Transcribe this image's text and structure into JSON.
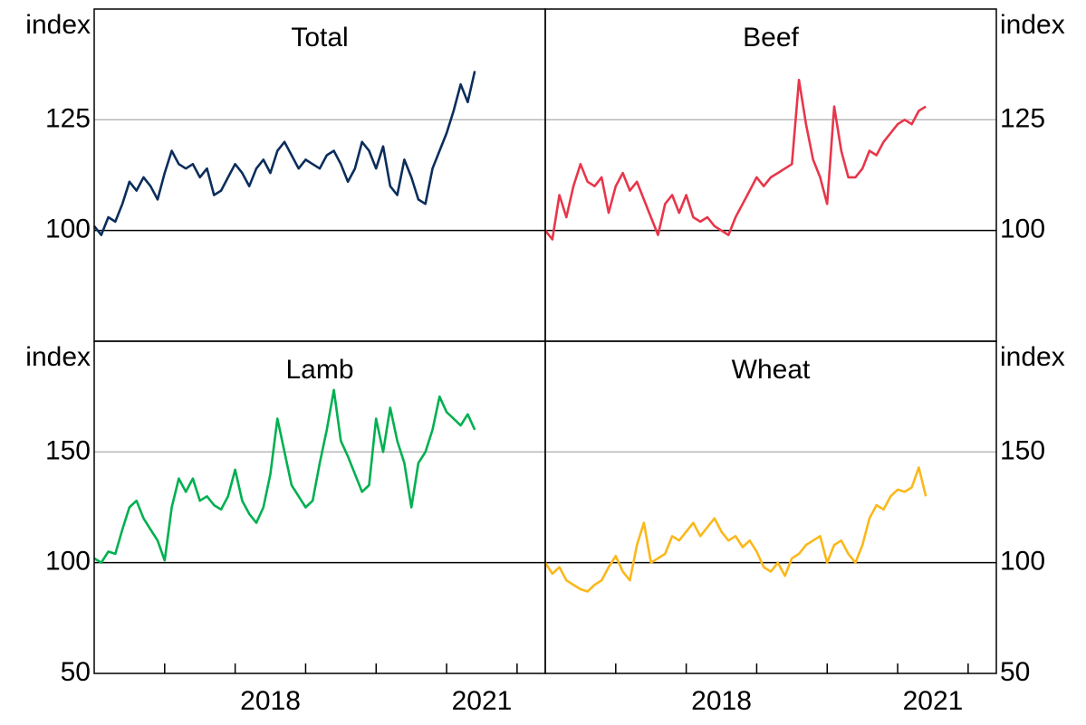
{
  "chart_data": [
    {
      "type": "line",
      "title": "Total",
      "y_label": "index",
      "axis_side": "left",
      "color": "#0b2d5c",
      "xlim": [
        2016,
        2022.4
      ],
      "ylim": [
        75,
        150
      ],
      "yticks": [
        100,
        125
      ],
      "baseline": 100,
      "x": [
        2016.0,
        2016.1,
        2016.2,
        2016.3,
        2016.4,
        2016.5,
        2016.6,
        2016.7,
        2016.8,
        2016.9,
        2017.0,
        2017.1,
        2017.2,
        2017.3,
        2017.4,
        2017.5,
        2017.6,
        2017.7,
        2017.8,
        2017.9,
        2018.0,
        2018.1,
        2018.2,
        2018.3,
        2018.4,
        2018.5,
        2018.6,
        2018.7,
        2018.8,
        2018.9,
        2019.0,
        2019.1,
        2019.2,
        2019.3,
        2019.4,
        2019.5,
        2019.6,
        2019.7,
        2019.8,
        2019.9,
        2020.0,
        2020.1,
        2020.2,
        2020.3,
        2020.4,
        2020.5,
        2020.6,
        2020.7,
        2020.8,
        2020.9,
        2021.0,
        2021.1,
        2021.2,
        2021.3,
        2021.4
      ],
      "values": [
        101,
        99,
        103,
        102,
        106,
        111,
        109,
        112,
        110,
        107,
        113,
        118,
        115,
        114,
        115,
        112,
        114,
        108,
        109,
        112,
        115,
        113,
        110,
        114,
        116,
        113,
        118,
        120,
        117,
        114,
        116,
        115,
        114,
        117,
        118,
        115,
        111,
        114,
        120,
        118,
        114,
        119,
        110,
        108,
        116,
        112,
        107,
        106,
        114,
        118,
        122,
        127,
        133,
        129,
        136
      ]
    },
    {
      "type": "line",
      "title": "Beef",
      "y_label": "index",
      "axis_side": "right",
      "color": "#e8364a",
      "xlim": [
        2016,
        2022.4
      ],
      "ylim": [
        75,
        150
      ],
      "yticks": [
        100,
        125
      ],
      "baseline": 100,
      "x": [
        2016.0,
        2016.1,
        2016.2,
        2016.3,
        2016.4,
        2016.5,
        2016.6,
        2016.7,
        2016.8,
        2016.9,
        2017.0,
        2017.1,
        2017.2,
        2017.3,
        2017.4,
        2017.5,
        2017.6,
        2017.7,
        2017.8,
        2017.9,
        2018.0,
        2018.1,
        2018.2,
        2018.3,
        2018.4,
        2018.5,
        2018.6,
        2018.7,
        2018.8,
        2018.9,
        2019.0,
        2019.1,
        2019.2,
        2019.3,
        2019.4,
        2019.5,
        2019.6,
        2019.7,
        2019.8,
        2019.9,
        2020.0,
        2020.1,
        2020.2,
        2020.3,
        2020.4,
        2020.5,
        2020.6,
        2020.7,
        2020.8,
        2020.9,
        2021.0,
        2021.1,
        2021.2,
        2021.3,
        2021.4
      ],
      "values": [
        100,
        98,
        108,
        103,
        110,
        115,
        111,
        110,
        112,
        104,
        110,
        113,
        109,
        111,
        107,
        103,
        99,
        106,
        108,
        104,
        108,
        103,
        102,
        103,
        101,
        100,
        99,
        103,
        106,
        109,
        112,
        110,
        112,
        113,
        114,
        115,
        134,
        124,
        116,
        112,
        106,
        128,
        118,
        112,
        112,
        114,
        118,
        117,
        120,
        122,
        124,
        125,
        124,
        127,
        128
      ]
    },
    {
      "type": "line",
      "title": "Lamb",
      "y_label": "index",
      "axis_side": "left",
      "color": "#00b050",
      "xlim": [
        2016,
        2022.4
      ],
      "ylim": [
        50,
        200
      ],
      "yticks": [
        50,
        100,
        150
      ],
      "baseline": 100,
      "xticks": [
        2017,
        2018,
        2019,
        2020,
        2021,
        2022
      ],
      "xlabels": [
        {
          "value": 2018.5,
          "label": "2018"
        },
        {
          "value": 2021.5,
          "label": "2021"
        }
      ],
      "x": [
        2016.0,
        2016.1,
        2016.2,
        2016.3,
        2016.4,
        2016.5,
        2016.6,
        2016.7,
        2016.8,
        2016.9,
        2017.0,
        2017.1,
        2017.2,
        2017.3,
        2017.4,
        2017.5,
        2017.6,
        2017.7,
        2017.8,
        2017.9,
        2018.0,
        2018.1,
        2018.2,
        2018.3,
        2018.4,
        2018.5,
        2018.6,
        2018.7,
        2018.8,
        2018.9,
        2019.0,
        2019.1,
        2019.2,
        2019.3,
        2019.4,
        2019.5,
        2019.6,
        2019.7,
        2019.8,
        2019.9,
        2020.0,
        2020.1,
        2020.2,
        2020.3,
        2020.4,
        2020.5,
        2020.6,
        2020.7,
        2020.8,
        2020.9,
        2021.0,
        2021.1,
        2021.2,
        2021.3,
        2021.4
      ],
      "values": [
        102,
        100,
        105,
        104,
        115,
        125,
        128,
        120,
        115,
        110,
        101,
        125,
        138,
        132,
        138,
        128,
        130,
        126,
        124,
        130,
        142,
        128,
        122,
        118,
        125,
        140,
        165,
        150,
        135,
        130,
        125,
        128,
        145,
        160,
        178,
        155,
        148,
        140,
        132,
        135,
        165,
        150,
        170,
        155,
        145,
        125,
        145,
        150,
        160,
        175,
        168,
        165,
        162,
        167,
        160
      ]
    },
    {
      "type": "line",
      "title": "Wheat",
      "y_label": "index",
      "axis_side": "right",
      "color": "#fbb81a",
      "xlim": [
        2016,
        2022.4
      ],
      "ylim": [
        50,
        200
      ],
      "yticks": [
        50,
        100,
        150
      ],
      "baseline": 100,
      "xticks": [
        2017,
        2018,
        2019,
        2020,
        2021,
        2022
      ],
      "xlabels": [
        {
          "value": 2018.5,
          "label": "2018"
        },
        {
          "value": 2021.5,
          "label": "2021"
        }
      ],
      "x": [
        2016.0,
        2016.1,
        2016.2,
        2016.3,
        2016.4,
        2016.5,
        2016.6,
        2016.7,
        2016.8,
        2016.9,
        2017.0,
        2017.1,
        2017.2,
        2017.3,
        2017.4,
        2017.5,
        2017.6,
        2017.7,
        2017.8,
        2017.9,
        2018.0,
        2018.1,
        2018.2,
        2018.3,
        2018.4,
        2018.5,
        2018.6,
        2018.7,
        2018.8,
        2018.9,
        2019.0,
        2019.1,
        2019.2,
        2019.3,
        2019.4,
        2019.5,
        2019.6,
        2019.7,
        2019.8,
        2019.9,
        2020.0,
        2020.1,
        2020.2,
        2020.3,
        2020.4,
        2020.5,
        2020.6,
        2020.7,
        2020.8,
        2020.9,
        2021.0,
        2021.1,
        2021.2,
        2021.3,
        2021.4
      ],
      "values": [
        100,
        95,
        98,
        92,
        90,
        88,
        87,
        90,
        92,
        98,
        103,
        96,
        92,
        108,
        118,
        100,
        102,
        104,
        112,
        110,
        114,
        118,
        112,
        116,
        120,
        114,
        110,
        112,
        107,
        110,
        105,
        98,
        96,
        100,
        94,
        102,
        104,
        108,
        110,
        112,
        100,
        108,
        110,
        104,
        100,
        108,
        120,
        126,
        124,
        130,
        133,
        132,
        134,
        143,
        130
      ]
    }
  ]
}
